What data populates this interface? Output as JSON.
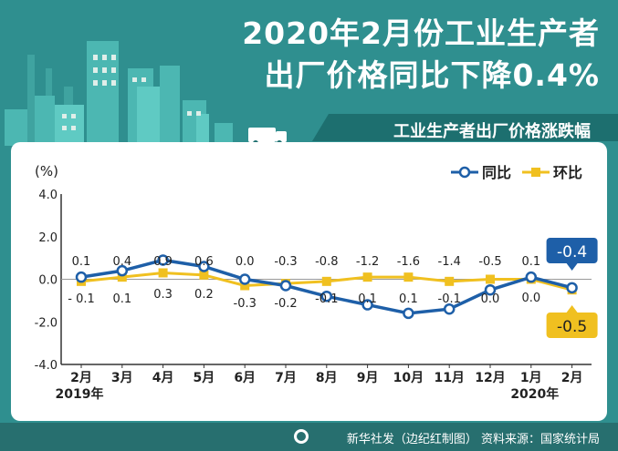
{
  "header": {
    "title_line1": "2020年2月份工业生产者",
    "title_line2": "出厂价格同比下降0.4%",
    "subtitle": "工业生产者出厂价格涨跌幅"
  },
  "footer": {
    "text": "新华社发（边纪红制图）  资料来源：国家统计局"
  },
  "colors": {
    "yoy": "#1e5fa8",
    "mom": "#f0c020",
    "bg": "#2f8f8f"
  },
  "chart_data": {
    "type": "line",
    "ylabel": "(%)",
    "ylim": [
      -4.0,
      4.0
    ],
    "yticks": [
      "4.0",
      "2.0",
      "0.0",
      "-2.0",
      "-4.0"
    ],
    "categories": [
      "2月",
      "3月",
      "4月",
      "5月",
      "6月",
      "7月",
      "8月",
      "9月",
      "10月",
      "11月",
      "12月",
      "1月",
      "2月"
    ],
    "year_labels": [
      {
        "index": 0,
        "text": "2019年"
      },
      {
        "index": 11,
        "text": "2020年"
      }
    ],
    "legend_position": "top-right",
    "series": [
      {
        "name": "同比",
        "values": [
          0.1,
          0.4,
          0.9,
          0.6,
          0.0,
          -0.3,
          -0.8,
          -1.2,
          -1.6,
          -1.4,
          -0.5,
          0.1,
          -0.4
        ],
        "labels": [
          "0.1",
          "0.4",
          "0.9",
          "0.6",
          "0.0",
          "-0.3",
          "-0.8",
          "-1.2",
          "-1.6",
          "-1.4",
          "-0.5",
          "0.1",
          "-0.4"
        ]
      },
      {
        "name": "环比",
        "values": [
          -0.1,
          0.1,
          0.3,
          0.2,
          -0.3,
          -0.2,
          -0.1,
          0.1,
          0.1,
          -0.1,
          0.0,
          0.0,
          -0.5
        ],
        "labels": [
          "- 0.1",
          "0.1",
          "0.3",
          "0.2",
          "-0.3",
          "-0.2",
          "-0.1",
          "0.1",
          "0.1",
          "-0.1",
          "0.0",
          "0.0",
          "-0.5"
        ]
      }
    ]
  }
}
